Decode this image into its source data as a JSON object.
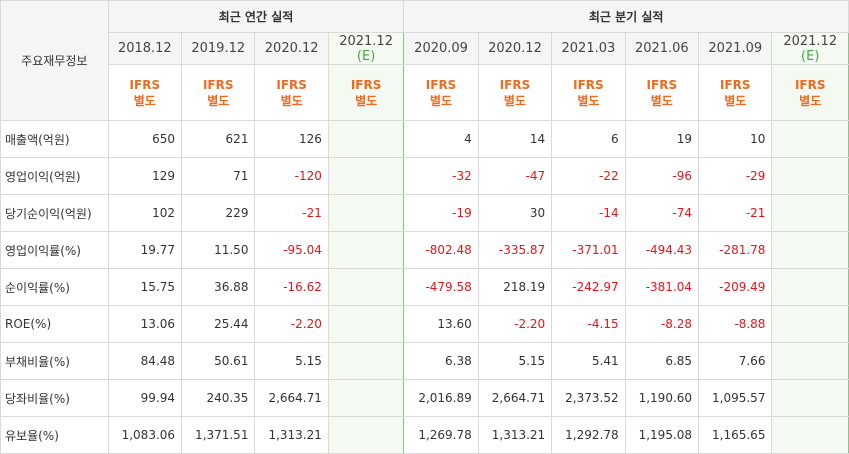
{
  "corner_label": "주요재무정보",
  "annual_header": "최근 연간 실적",
  "quarter_header": "최근 분기 실적",
  "periods": [
    {
      "label": "2018.12",
      "est": ""
    },
    {
      "label": "2019.12",
      "est": ""
    },
    {
      "label": "2020.12",
      "est": ""
    },
    {
      "label": "2021.12",
      "est": "(E)"
    },
    {
      "label": "2020.09",
      "est": ""
    },
    {
      "label": "2020.12",
      "est": ""
    },
    {
      "label": "2021.03",
      "est": ""
    },
    {
      "label": "2021.06",
      "est": ""
    },
    {
      "label": "2021.09",
      "est": ""
    },
    {
      "label": "2021.12",
      "est": "(E)"
    }
  ],
  "ifrs_line1": "IFRS",
  "ifrs_line2": "별도",
  "rows": [
    {
      "label": "매출액(억원)",
      "values": [
        "650",
        "621",
        "126",
        "",
        "4",
        "14",
        "6",
        "19",
        "10",
        ""
      ]
    },
    {
      "label": "영업이익(억원)",
      "values": [
        "129",
        "71",
        "-120",
        "",
        "-32",
        "-47",
        "-22",
        "-96",
        "-29",
        ""
      ]
    },
    {
      "label": "당기순이익(억원)",
      "values": [
        "102",
        "229",
        "-21",
        "",
        "-19",
        "30",
        "-14",
        "-74",
        "-21",
        ""
      ]
    },
    {
      "label": "영업이익률(%)",
      "values": [
        "19.77",
        "11.50",
        "-95.04",
        "",
        "-802.48",
        "-335.87",
        "-371.01",
        "-494.43",
        "-281.78",
        ""
      ]
    },
    {
      "label": "순이익률(%)",
      "values": [
        "15.75",
        "36.88",
        "-16.62",
        "",
        "-479.58",
        "218.19",
        "-242.97",
        "-381.04",
        "-209.49",
        ""
      ]
    },
    {
      "label": "ROE(%)",
      "values": [
        "13.06",
        "25.44",
        "-2.20",
        "",
        "13.60",
        "-2.20",
        "-4.15",
        "-8.28",
        "-8.88",
        ""
      ]
    },
    {
      "label": "부채비율(%)",
      "values": [
        "84.48",
        "50.61",
        "5.15",
        "",
        "6.38",
        "5.15",
        "5.41",
        "6.85",
        "7.66",
        ""
      ]
    },
    {
      "label": "당좌비율(%)",
      "values": [
        "99.94",
        "240.35",
        "2,664.71",
        "",
        "2,016.89",
        "2,664.71",
        "2,373.52",
        "1,190.60",
        "1,095.57",
        ""
      ]
    },
    {
      "label": "유보율(%)",
      "values": [
        "1,083.06",
        "1,371.51",
        "1,313.21",
        "",
        "1,269.78",
        "1,313.21",
        "1,292.78",
        "1,195.08",
        "1,165.65",
        ""
      ]
    }
  ],
  "colors": {
    "negative": "#e8141b",
    "ifrs": "#ef6a1d",
    "estimate": "#49a544"
  }
}
